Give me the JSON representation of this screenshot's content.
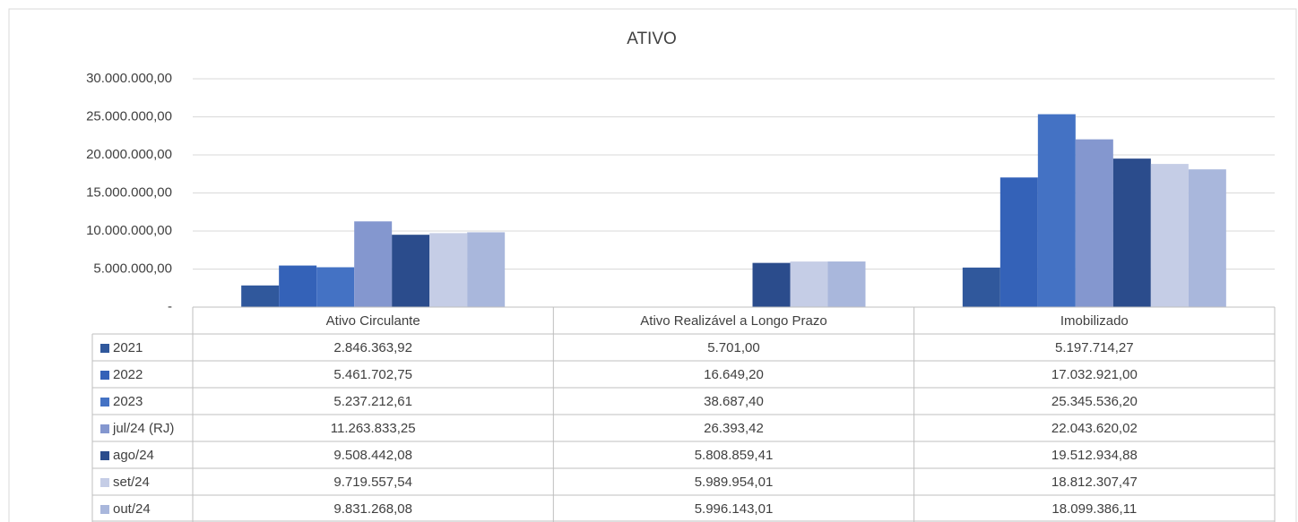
{
  "chart_data": {
    "type": "bar",
    "title": "ATIVO",
    "categories": [
      "Ativo Circulante",
      "Ativo Realizável a Longo Prazo",
      "Imobilizado"
    ],
    "series": [
      {
        "name": "2021",
        "color": "#30589c",
        "values": [
          2846363.92,
          5701.0,
          5197714.27
        ],
        "value_labels": [
          "2.846.363,92",
          "5.701,00",
          "5.197.714,27"
        ]
      },
      {
        "name": "2022",
        "color": "#3462b8",
        "values": [
          5461702.75,
          16649.2,
          17032921.0
        ],
        "value_labels": [
          "5.461.702,75",
          "16.649,20",
          "17.032.921,00"
        ]
      },
      {
        "name": "2023",
        "color": "#4472c4",
        "values": [
          5237212.61,
          38687.4,
          25345536.2
        ],
        "value_labels": [
          "5.237.212,61",
          "38.687,40",
          "25.345.536,20"
        ]
      },
      {
        "name": "jul/24 (RJ)",
        "color": "#8497cf",
        "values": [
          11263833.25,
          26393.42,
          22043620.02
        ],
        "value_labels": [
          "11.263.833,25",
          "26.393,42",
          "22.043.620,02"
        ]
      },
      {
        "name": "ago/24",
        "color": "#2b4c8c",
        "values": [
          9508442.08,
          5808859.41,
          19512934.88
        ],
        "value_labels": [
          "9.508.442,08",
          "5.808.859,41",
          "19.512.934,88"
        ]
      },
      {
        "name": "set/24",
        "color": "#c5cde6",
        "values": [
          9719557.54,
          5989954.01,
          18812307.47
        ],
        "value_labels": [
          "9.719.557,54",
          "5.989.954,01",
          "18.812.307,47"
        ]
      },
      {
        "name": "out/24",
        "color": "#a9b7dc",
        "values": [
          9831268.08,
          5996143.01,
          18099386.11
        ],
        "value_labels": [
          "9.831.268,08",
          "5.996.143,01",
          "18.099.386,11"
        ]
      }
    ],
    "ylim": [
      0,
      30000000
    ],
    "yticks": [
      {
        "value": 0,
        "label": "-"
      },
      {
        "value": 5000000,
        "label": "5.000.000,00"
      },
      {
        "value": 10000000,
        "label": "10.000.000,00"
      },
      {
        "value": 15000000,
        "label": "15.000.000,00"
      },
      {
        "value": 20000000,
        "label": "20.000.000,00"
      },
      {
        "value": 25000000,
        "label": "25.000.000,00"
      },
      {
        "value": 30000000,
        "label": "30.000.000,00"
      }
    ],
    "grid": true
  }
}
